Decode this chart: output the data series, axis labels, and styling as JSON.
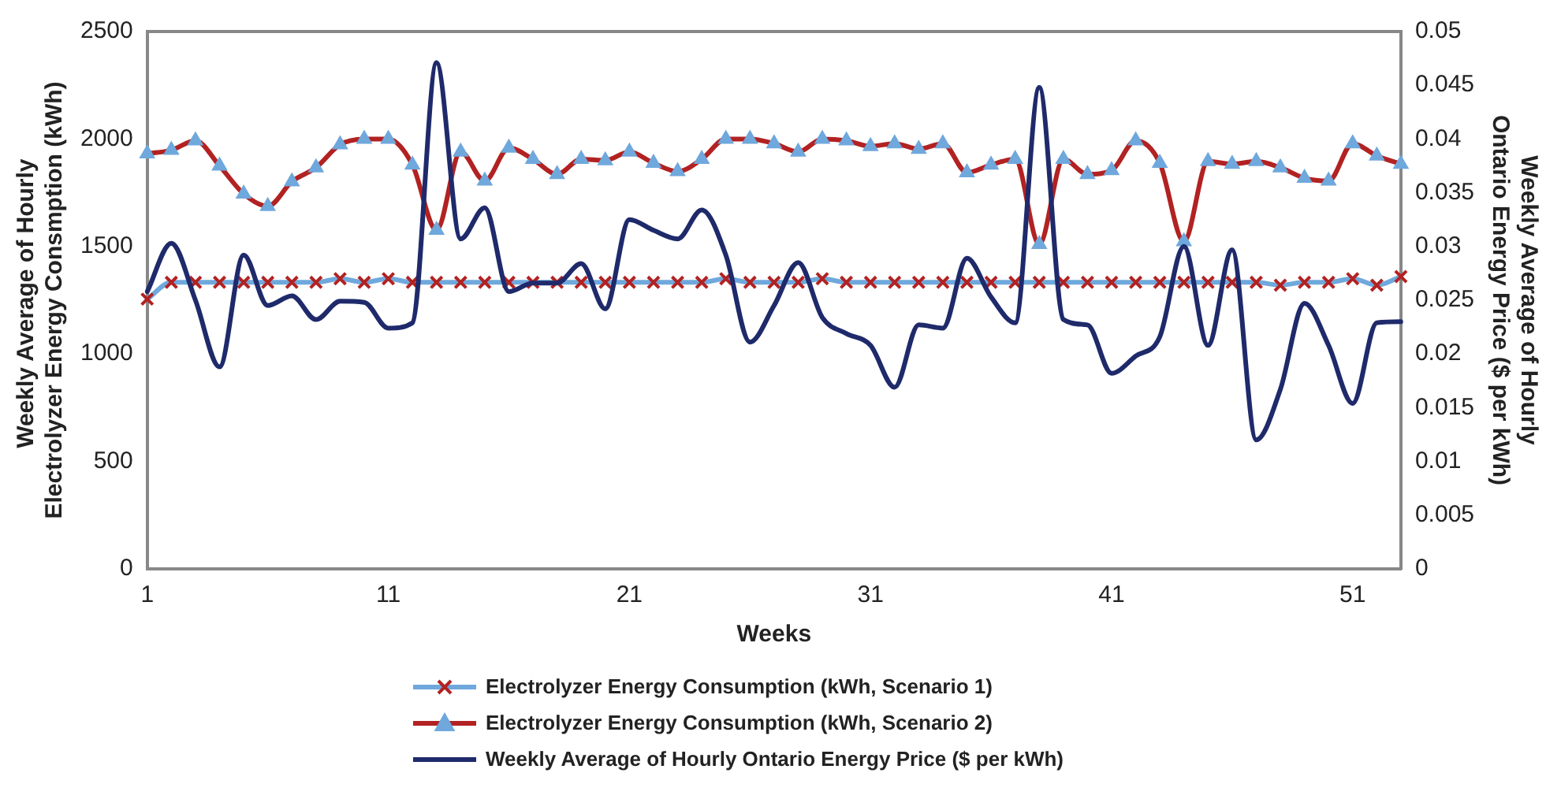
{
  "chart_data": {
    "type": "line",
    "xlabel": "Weeks",
    "ylabel": "Weekly Average of Hourly  Electrolyzer Energy Consmption (kWh)",
    "y2label": "Weekly Average of Hourly Ontario Energy Price ($ per kWh)",
    "categories": [
      "1",
      null,
      null,
      null,
      null,
      null,
      null,
      null,
      null,
      null,
      "11",
      null,
      null,
      null,
      null,
      null,
      null,
      null,
      null,
      null,
      "21",
      null,
      null,
      null,
      null,
      null,
      null,
      null,
      null,
      null,
      "31",
      null,
      null,
      null,
      null,
      null,
      null,
      null,
      null,
      null,
      "41",
      null,
      null,
      null,
      null,
      null,
      null,
      null,
      null,
      null,
      "51",
      null,
      null
    ],
    "ylim": [
      0,
      2500
    ],
    "yticks": [
      0,
      500,
      1000,
      1500,
      2000,
      2500
    ],
    "y2lim": [
      0,
      0.05
    ],
    "y2ticks": [
      0,
      0.005,
      0.01,
      0.015,
      0.02,
      0.025,
      0.03,
      0.035,
      0.04,
      0.045,
      0.05
    ],
    "grid": false,
    "legend": "bottom",
    "series": [
      {
        "name": "Electrolyzer Energy Consumption (kWh, Scenario 1)",
        "color": "#6fa8dc",
        "marker": "cross",
        "values": [
          1255,
          1333,
          1333,
          1333,
          1333,
          1333,
          1333,
          1333,
          1350,
          1333,
          1350,
          1333,
          1333,
          1333,
          1333,
          1333,
          1333,
          1333,
          1333,
          1333,
          1333,
          1333,
          1333,
          1333,
          1350,
          1333,
          1333,
          1333,
          1350,
          1333,
          1333,
          1333,
          1333,
          1333,
          1333,
          1333,
          1333,
          1333,
          1333,
          1333,
          1333,
          1333,
          1333,
          1333,
          1333,
          1333,
          1333,
          1320,
          1333,
          1333,
          1350,
          1320,
          1360
        ]
      },
      {
        "name": "Electrolyzer Energy Consumption (kWh, Scenario 2)",
        "color": "#b22222",
        "marker": "triangle",
        "values": [
          1932,
          1948,
          1992,
          1875,
          1745,
          1687,
          1802,
          1867,
          1974,
          2000,
          2000,
          1880,
          1576,
          1940,
          1805,
          1958,
          1906,
          1836,
          1906,
          1900,
          1940,
          1888,
          1849,
          1906,
          2000,
          2000,
          1979,
          1940,
          2000,
          1992,
          1966,
          1979,
          1953,
          1979,
          1844,
          1880,
          1906,
          1510,
          1906,
          1836,
          1854,
          1992,
          1888,
          1523,
          1896,
          1883,
          1896,
          1867,
          1818,
          1805,
          1979,
          1922,
          1883
        ]
      },
      {
        "name": "Weekly Average of Hourly Ontario Energy Price ($ per kWh)",
        "color": "#1f2a6b",
        "marker": "none",
        "axis": "y2",
        "values": [
          0.0258,
          0.0303,
          0.025,
          0.0188,
          0.0292,
          0.0245,
          0.0254,
          0.0232,
          0.0249,
          0.0248,
          0.0224,
          0.0229,
          0.0471,
          0.0307,
          0.0336,
          0.0258,
          0.0266,
          0.0266,
          0.0284,
          0.0242,
          0.0325,
          0.0315,
          0.0307,
          0.0334,
          0.0292,
          0.0211,
          0.0245,
          0.0285,
          0.0234,
          0.0219,
          0.0208,
          0.0169,
          0.0227,
          0.0224,
          0.0289,
          0.0253,
          0.0229,
          0.0448,
          0.0232,
          0.0227,
          0.0182,
          0.0198,
          0.0216,
          0.03,
          0.0208,
          0.0297,
          0.012,
          0.0167,
          0.0247,
          0.0208,
          0.0154,
          0.0229,
          0.023
        ]
      }
    ]
  }
}
